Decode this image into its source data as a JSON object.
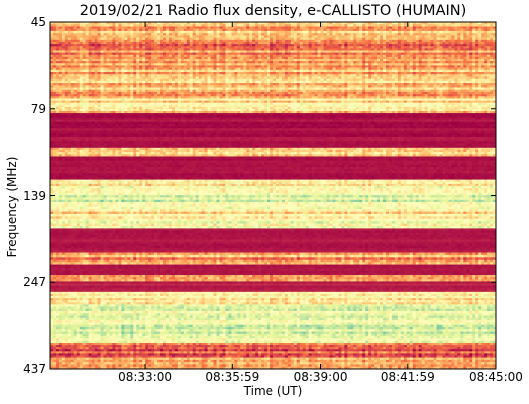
{
  "chart_data": {
    "type": "heatmap",
    "title": "2019/02/21  Radio flux density, e-CALLISTO (HUMAIN)",
    "xlabel": "Time (UT)",
    "ylabel": "Frequency (MHz)",
    "x_ticks": [
      "08:33:00",
      "08:35:59",
      "08:39:00",
      "08:41:59",
      "08:45:00"
    ],
    "x_range": [
      "08:29:45",
      "08:45:00"
    ],
    "y_ticks": [
      "45",
      "79",
      "139",
      "247",
      "437"
    ],
    "y_range": [
      45,
      437
    ],
    "colormap": [
      "#9e0142",
      "#d53e4f",
      "#f46d43",
      "#fdae61",
      "#fee08b",
      "#ffffbf",
      "#e6f598",
      "#abdda4",
      "#66c2a5"
    ],
    "frequency_bands": [
      {
        "from": 45,
        "to": 52,
        "level": 0.38
      },
      {
        "from": 52,
        "to": 62,
        "level": 0.3
      },
      {
        "from": 62,
        "to": 75,
        "level": 0.42
      },
      {
        "from": 75,
        "to": 82,
        "level": 0.5
      },
      {
        "from": 82,
        "to": 106,
        "level": 0.02
      },
      {
        "from": 106,
        "to": 112,
        "level": 0.45
      },
      {
        "from": 112,
        "to": 128,
        "level": 0.02
      },
      {
        "from": 128,
        "to": 134,
        "level": 0.6
      },
      {
        "from": 134,
        "to": 150,
        "level": 0.72
      },
      {
        "from": 150,
        "to": 165,
        "level": 0.55
      },
      {
        "from": 165,
        "to": 180,
        "level": 0.65
      },
      {
        "from": 180,
        "to": 210,
        "level": 0.02
      },
      {
        "from": 210,
        "to": 225,
        "level": 0.35
      },
      {
        "from": 225,
        "to": 238,
        "level": 0.02
      },
      {
        "from": 238,
        "to": 246,
        "level": 0.4
      },
      {
        "from": 246,
        "to": 268,
        "level": 0.05
      },
      {
        "from": 268,
        "to": 300,
        "level": 0.62
      },
      {
        "from": 300,
        "to": 340,
        "level": 0.7
      },
      {
        "from": 340,
        "to": 380,
        "level": 0.74
      },
      {
        "from": 380,
        "to": 412,
        "level": 0.2
      },
      {
        "from": 412,
        "to": 437,
        "level": 0.48
      }
    ]
  }
}
